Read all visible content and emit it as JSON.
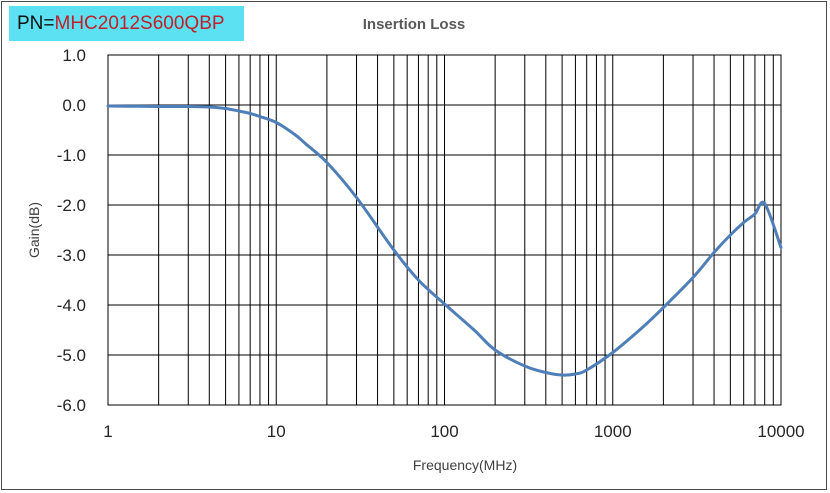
{
  "header": {
    "pn_prefix": "PN=",
    "pn_value": "MHC2012S600QBP"
  },
  "colors": {
    "pn_background": "#5ce1f2",
    "pn_value_text": "#c0202b",
    "line": "#4f7fb8",
    "grid": "#000000"
  },
  "chart_data": {
    "type": "line",
    "title": "Insertion Loss",
    "xlabel": "Frequency(MHz)",
    "ylabel": "Gain(dB)",
    "xscale": "log",
    "xlim": [
      1,
      10000
    ],
    "ylim": [
      -6.0,
      1.0
    ],
    "grid": true,
    "legend": "none",
    "x_tick_labels": [
      "1",
      "10",
      "100",
      "1000",
      "10000"
    ],
    "x_ticks": [
      1,
      10,
      100,
      1000,
      10000
    ],
    "y_tick_labels": [
      "1.0",
      "0.0",
      "-1.0",
      "-2.0",
      "-3.0",
      "-4.0",
      "-5.0",
      "-6.0"
    ],
    "y_ticks": [
      1.0,
      0.0,
      -1.0,
      -2.0,
      -3.0,
      -4.0,
      -5.0,
      -6.0
    ],
    "series": [
      {
        "x": [
          1,
          2,
          3,
          4,
          5,
          6,
          7,
          8,
          10,
          13,
          15,
          20,
          30,
          50,
          70,
          100,
          150,
          200,
          300,
          400,
          500,
          600,
          700,
          1000,
          1500,
          2000,
          3000,
          4000,
          5000,
          6000,
          7000,
          8000,
          10000
        ],
        "values": [
          -0.02,
          -0.03,
          -0.03,
          -0.04,
          -0.07,
          -0.12,
          -0.17,
          -0.23,
          -0.35,
          -0.6,
          -0.78,
          -1.15,
          -1.85,
          -2.9,
          -3.5,
          -3.98,
          -4.5,
          -4.9,
          -5.22,
          -5.35,
          -5.4,
          -5.38,
          -5.3,
          -4.95,
          -4.45,
          -4.05,
          -3.45,
          -2.95,
          -2.6,
          -2.35,
          -2.18,
          -1.97,
          -2.85
        ]
      }
    ]
  }
}
